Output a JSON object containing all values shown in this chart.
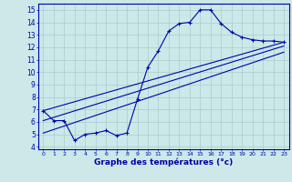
{
  "bg_color": "#cce8e8",
  "grid_color": "#aacccc",
  "line_color": "#0000aa",
  "xlabel": "Graphe des températures (°c)",
  "ylim": [
    3.8,
    15.5
  ],
  "xlim": [
    -0.5,
    23.5
  ],
  "yticks": [
    4,
    5,
    6,
    7,
    8,
    9,
    10,
    11,
    12,
    13,
    14,
    15
  ],
  "xticks": [
    0,
    1,
    2,
    3,
    4,
    5,
    6,
    7,
    8,
    9,
    10,
    11,
    12,
    13,
    14,
    15,
    16,
    17,
    18,
    19,
    20,
    21,
    22,
    23
  ],
  "curve1_x": [
    0,
    1,
    2,
    3,
    4,
    5,
    6,
    7,
    8,
    9,
    10,
    11,
    12,
    13,
    14,
    15,
    16,
    17,
    18,
    19,
    20,
    21,
    22,
    23
  ],
  "curve1_y": [
    6.9,
    6.1,
    6.1,
    4.5,
    5.0,
    5.1,
    5.3,
    4.9,
    5.1,
    7.8,
    10.4,
    11.7,
    13.3,
    13.9,
    14.0,
    15.0,
    15.0,
    13.9,
    13.2,
    12.8,
    12.6,
    12.5,
    12.5,
    12.4
  ],
  "line2_x": [
    0,
    23
  ],
  "line2_y": [
    6.9,
    12.4
  ],
  "line3_x": [
    0,
    23
  ],
  "line3_y": [
    6.1,
    12.1
  ],
  "line4_x": [
    0,
    23
  ],
  "line4_y": [
    5.1,
    11.6
  ]
}
